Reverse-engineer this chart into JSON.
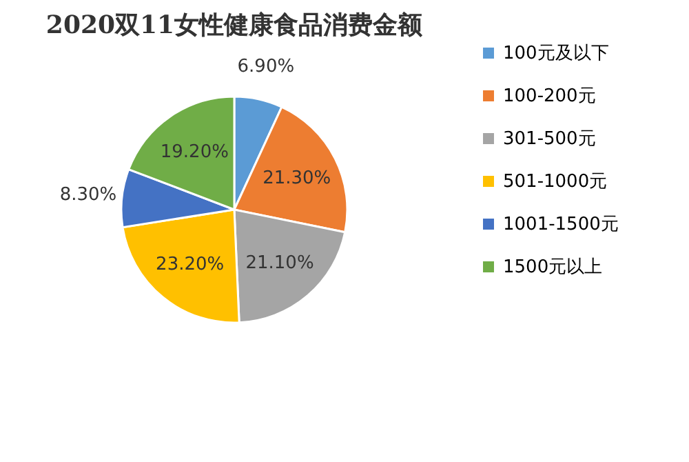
{
  "chart_data": {
    "type": "pie",
    "title": "2020双11女性健康食品消费金额",
    "categories": [
      "100元及以下",
      "100-200元",
      "301-500元",
      "501-1000元",
      "1001-1500元",
      "1500元以上"
    ],
    "values": [
      6.9,
      21.3,
      21.1,
      23.2,
      8.3,
      19.2
    ],
    "value_labels": [
      "6.90%",
      "21.30%",
      "21.10%",
      "23.20%",
      "8.30%",
      "19.20%"
    ],
    "colors": [
      "#5b9bd5",
      "#ed7d31",
      "#a5a5a5",
      "#ffc000",
      "#4472c4",
      "#70ad47"
    ],
    "legend": "right"
  }
}
